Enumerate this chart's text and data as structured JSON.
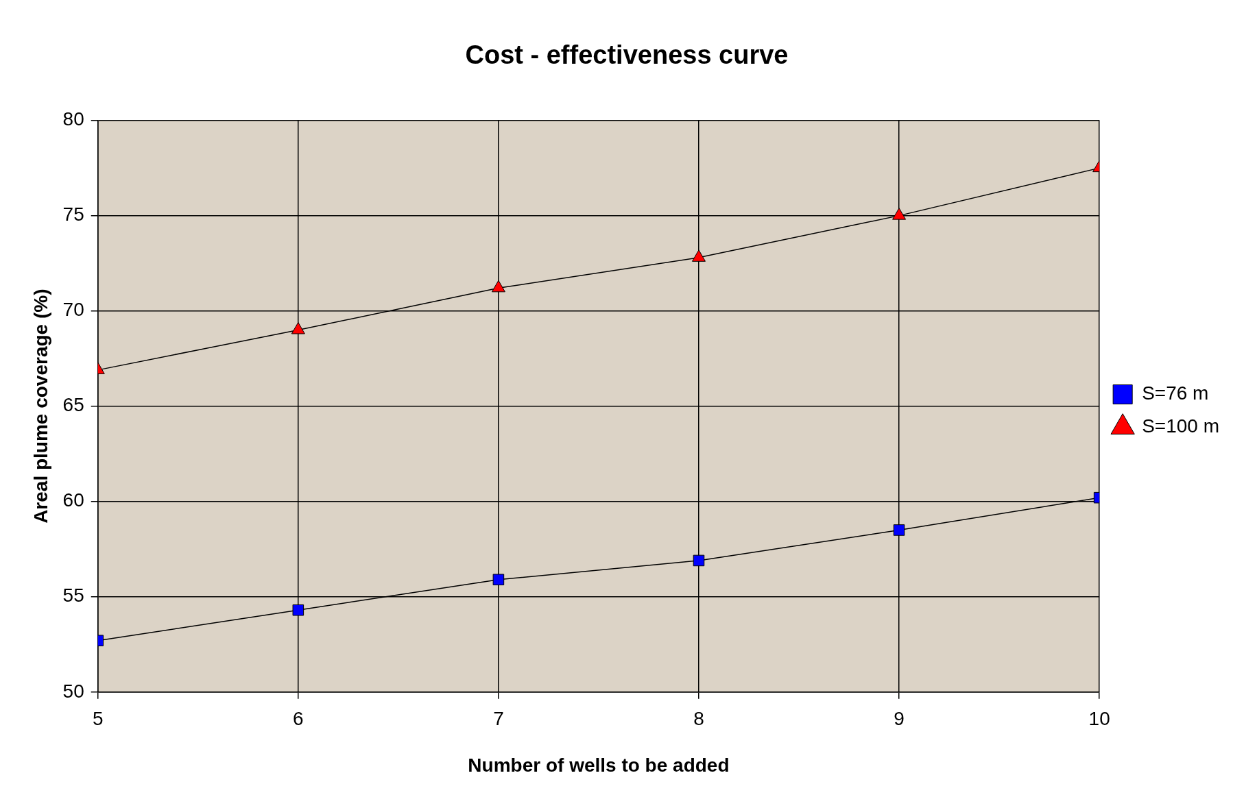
{
  "chart_data": {
    "type": "line",
    "title": "Cost - effectiveness curve",
    "xlabel": "Number of wells to be added",
    "ylabel": "Areal plume coverage (%)",
    "x": [
      5,
      6,
      7,
      8,
      9,
      10
    ],
    "xlim": [
      5,
      10
    ],
    "xticks": [
      5,
      6,
      7,
      8,
      9,
      10
    ],
    "ylim": [
      50,
      80
    ],
    "yticks": [
      50,
      55,
      60,
      65,
      70,
      75,
      80
    ],
    "grid": true,
    "legend": "right",
    "series": [
      {
        "name": "S=76 m",
        "color": "#0000ff",
        "marker": "square",
        "values": [
          52.7,
          54.3,
          55.9,
          56.9,
          58.5,
          60.2
        ]
      },
      {
        "name": "S=100 m",
        "color": "#ff0000",
        "marker": "triangle",
        "values": [
          66.9,
          69.0,
          71.2,
          72.8,
          75.0,
          77.5
        ]
      }
    ]
  }
}
